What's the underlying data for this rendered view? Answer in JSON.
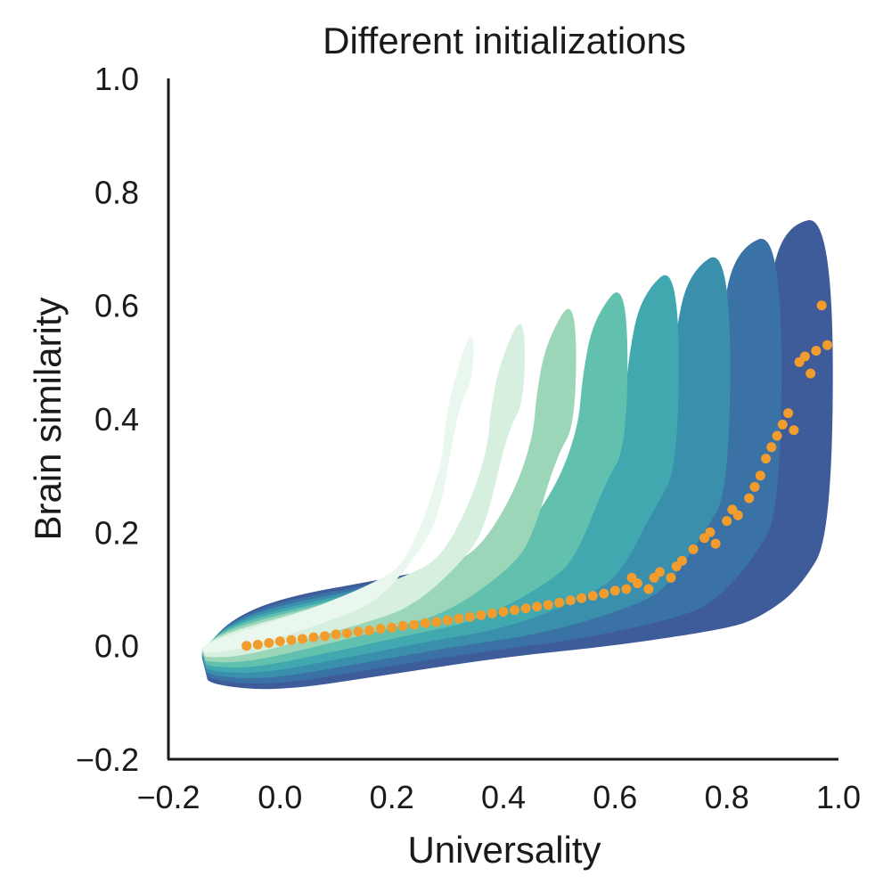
{
  "chart_data": {
    "type": "scatter",
    "title": "Different initializations",
    "xlabel": "Universality",
    "ylabel": "Brain similarity",
    "xlim": [
      -0.2,
      1.0
    ],
    "ylim": [
      -0.2,
      1.0
    ],
    "xticks": [
      "−0.2",
      "0.0",
      "0.2",
      "0.4",
      "0.6",
      "0.8",
      "1.0"
    ],
    "yticks": [
      "−0.2",
      "0.0",
      "0.2",
      "0.4",
      "0.6",
      "0.8",
      "1.0"
    ],
    "grid": false,
    "density": {
      "colormap": [
        "#3e5c9a",
        "#3a72a6",
        "#3a8fad",
        "#40a8ae",
        "#62c0ae",
        "#9bd6b8",
        "#d6efdf",
        "#eaf7ee"
      ],
      "upper_edge": [
        [
          -0.14,
          -0.02
        ],
        [
          -0.1,
          0.04
        ],
        [
          0.0,
          0.085
        ],
        [
          0.2,
          0.12
        ],
        [
          0.4,
          0.16
        ],
        [
          0.6,
          0.2
        ],
        [
          0.7,
          0.245
        ],
        [
          0.8,
          0.33
        ],
        [
          0.86,
          0.46
        ],
        [
          0.87,
          0.6
        ],
        [
          0.9,
          0.74
        ],
        [
          0.99,
          0.76
        ]
      ],
      "lower_edge": [
        [
          0.99,
          0.2
        ],
        [
          0.93,
          0.1
        ],
        [
          0.86,
          0.05
        ],
        [
          0.8,
          0.03
        ],
        [
          0.6,
          0.0
        ],
        [
          0.4,
          -0.02
        ],
        [
          0.2,
          -0.05
        ],
        [
          0.0,
          -0.08
        ],
        [
          -0.12,
          -0.07
        ],
        [
          -0.14,
          -0.05
        ]
      ]
    },
    "series": [
      {
        "color": "#f39c2e",
        "x": [
          -0.06,
          -0.04,
          -0.02,
          0.0,
          0.02,
          0.04,
          0.06,
          0.08,
          0.1,
          0.12,
          0.14,
          0.16,
          0.18,
          0.2,
          0.22,
          0.24,
          0.26,
          0.28,
          0.3,
          0.32,
          0.34,
          0.36,
          0.38,
          0.4,
          0.42,
          0.44,
          0.46,
          0.48,
          0.5,
          0.52,
          0.54,
          0.56,
          0.58,
          0.6,
          0.62,
          0.63,
          0.64,
          0.66,
          0.67,
          0.68,
          0.7,
          0.71,
          0.72,
          0.74,
          0.76,
          0.77,
          0.78,
          0.8,
          0.81,
          0.82,
          0.84,
          0.85,
          0.86,
          0.87,
          0.88,
          0.89,
          0.9,
          0.91,
          0.92,
          0.93,
          0.94,
          0.95,
          0.96,
          0.97,
          0.98
        ],
        "y": [
          0.0,
          0.002,
          0.005,
          0.008,
          0.01,
          0.012,
          0.015,
          0.017,
          0.02,
          0.022,
          0.025,
          0.027,
          0.03,
          0.032,
          0.035,
          0.037,
          0.04,
          0.042,
          0.045,
          0.048,
          0.051,
          0.054,
          0.057,
          0.06,
          0.063,
          0.066,
          0.069,
          0.072,
          0.076,
          0.08,
          0.084,
          0.088,
          0.092,
          0.097,
          0.1,
          0.12,
          0.11,
          0.1,
          0.12,
          0.13,
          0.12,
          0.14,
          0.15,
          0.17,
          0.19,
          0.2,
          0.18,
          0.22,
          0.24,
          0.23,
          0.26,
          0.28,
          0.3,
          0.33,
          0.35,
          0.37,
          0.39,
          0.41,
          0.38,
          0.5,
          0.51,
          0.48,
          0.52,
          0.6,
          0.53
        ]
      }
    ]
  }
}
